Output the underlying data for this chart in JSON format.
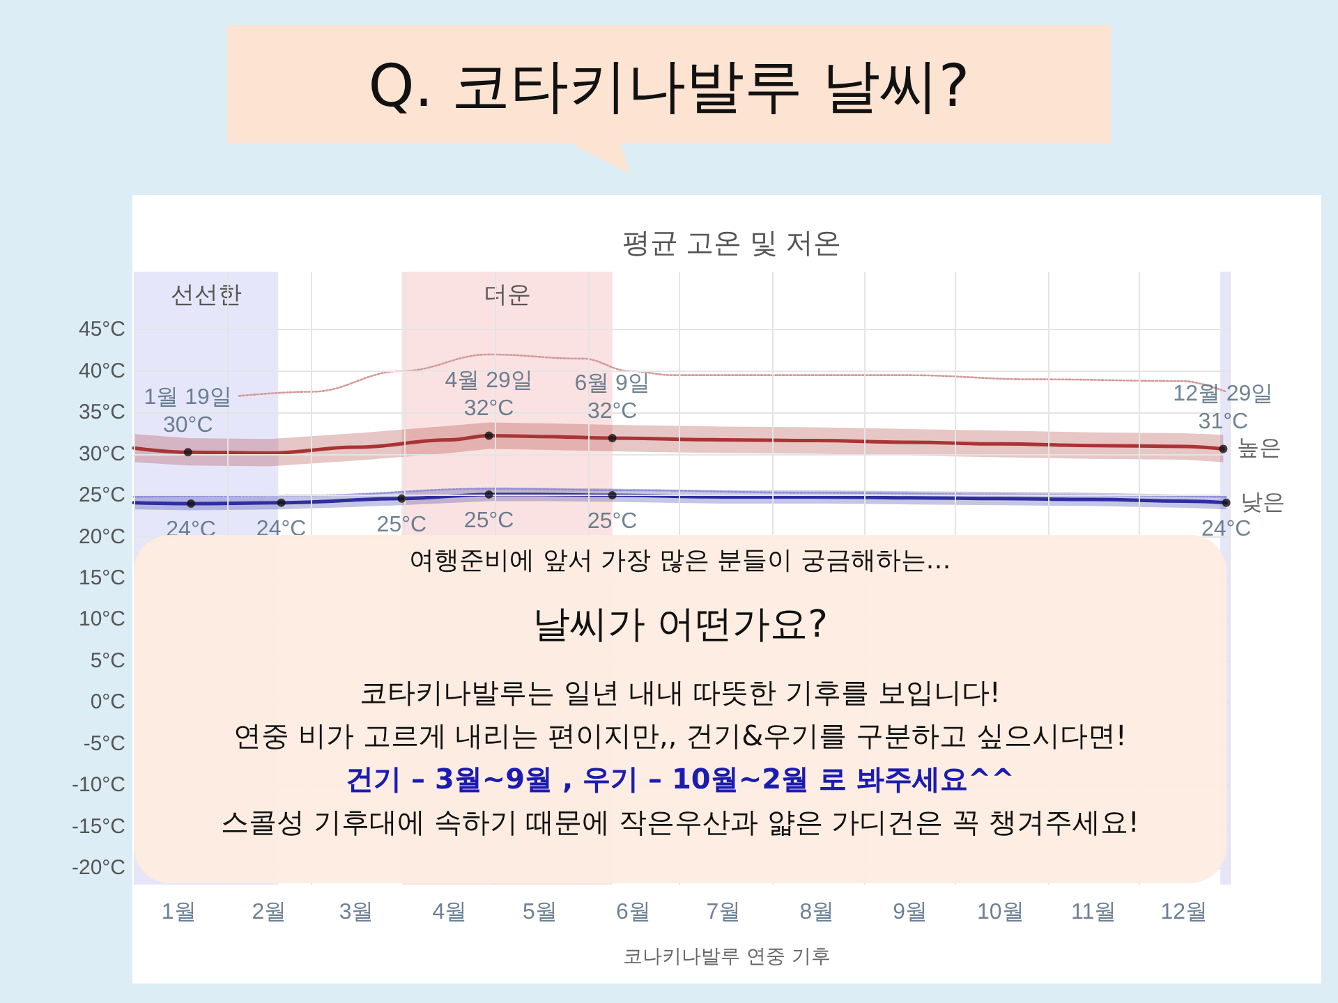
{
  "chart_data": {
    "type": "line",
    "title": "Q. 코타키나발루 날씨?",
    "subtitle": "평균 고온 및 저온",
    "xlim": [
      "--01-01",
      "--12-31"
    ],
    "xticks": [
      {
        "value": "--01-01",
        "label": null
      },
      {
        "value": "--01-16",
        "label": "1월"
      },
      {
        "value": "--02-01",
        "label": null
      },
      {
        "value": "--02-15",
        "label": "2월"
      },
      {
        "value": "--03-01",
        "label": null
      },
      {
        "value": "--03-16",
        "label": "3월"
      },
      {
        "value": "--04-01",
        "label": null
      },
      {
        "value": "--04-16",
        "label": "4월"
      },
      {
        "value": "--05-01",
        "label": null
      },
      {
        "value": "--05-16",
        "label": "5월"
      },
      {
        "value": "--06-01",
        "label": null
      },
      {
        "value": "--06-16",
        "label": "6월"
      },
      {
        "value": "--07-01",
        "label": null
      },
      {
        "value": "--07-16",
        "label": "7월"
      },
      {
        "value": "--08-01",
        "label": null
      },
      {
        "value": "--08-16",
        "label": "8월"
      },
      {
        "value": "--09-01",
        "label": null
      },
      {
        "value": "--09-16",
        "label": "9월"
      },
      {
        "value": "--10-01",
        "label": null
      },
      {
        "value": "--10-16",
        "label": "10월"
      },
      {
        "value": "--11-01",
        "label": null
      },
      {
        "value": "--11-16",
        "label": "11월"
      },
      {
        "value": "--12-01",
        "label": null
      },
      {
        "value": "--12-16",
        "label": "12월"
      },
      {
        "value": "--12-31",
        "label": null
      }
    ],
    "ylim": [
      -22,
      52
    ],
    "yticks": [
      {
        "value": -20,
        "label": "-20°C"
      },
      {
        "value": -15,
        "label": "-15°C"
      },
      {
        "value": -10,
        "label": "-10°C"
      },
      {
        "value": -5,
        "label": "-5°C"
      },
      {
        "value": 0,
        "label": "0°C"
      },
      {
        "value": 5,
        "label": "5°C"
      },
      {
        "value": 10,
        "label": "10°C"
      },
      {
        "value": 15,
        "label": "15°C"
      },
      {
        "value": 20,
        "label": "20°C"
      },
      {
        "value": 25,
        "label": "25°C"
      },
      {
        "value": 30,
        "label": "30°C"
      },
      {
        "value": 35,
        "label": "35°C"
      },
      {
        "value": 40,
        "label": "40°C"
      },
      {
        "value": 45,
        "label": "45°C"
      }
    ],
    "grid": true,
    "legend": false,
    "marker": "none",
    "line_style": "solid",
    "series": [
      {
        "name": "높은",
        "color": "#a83434",
        "x": [
          "--01-01",
          "--01-19",
          "--02-15",
          "--03-16",
          "--04-16",
          "--04-29",
          "--05-16",
          "--06-09",
          "--07-16",
          "--08-16",
          "--09-16",
          "--10-16",
          "--11-16",
          "--12-16",
          "--12-29"
        ],
        "values": [
          30.7,
          30.2,
          30.1,
          30.8,
          31.7,
          32.2,
          32.1,
          31.9,
          31.7,
          31.6,
          31.4,
          31.2,
          31.0,
          30.9,
          30.6
        ],
        "lower": [
          29.0,
          28.6,
          28.5,
          29.2,
          30.1,
          30.6,
          30.5,
          30.3,
          30.1,
          30.0,
          29.8,
          29.6,
          29.4,
          29.3,
          29.0
        ],
        "upper": [
          32.4,
          31.9,
          31.8,
          32.5,
          33.4,
          33.8,
          33.7,
          33.5,
          33.3,
          33.2,
          33.0,
          32.8,
          32.6,
          32.5,
          32.3
        ]
      },
      {
        "name": "낮은",
        "color": "#2e2e9e",
        "x": [
          "--01-01",
          "--01-20",
          "--02-19",
          "--03-31",
          "--04-29",
          "--05-16",
          "--06-09",
          "--07-16",
          "--08-16",
          "--09-16",
          "--10-16",
          "--11-16",
          "--12-16",
          "--12-30"
        ],
        "values": [
          24.1,
          24.0,
          24.1,
          24.6,
          25.1,
          25.1,
          25.0,
          24.8,
          24.8,
          24.7,
          24.6,
          24.5,
          24.3,
          24.1
        ],
        "lower": [
          23.3,
          23.2,
          23.3,
          23.8,
          24.3,
          24.3,
          24.2,
          24.0,
          24.0,
          23.9,
          23.8,
          23.7,
          23.5,
          23.3
        ],
        "upper": [
          24.9,
          24.8,
          24.9,
          25.4,
          25.9,
          25.9,
          25.8,
          25.6,
          25.6,
          25.5,
          25.4,
          25.3,
          25.1,
          24.9
        ]
      },
      {
        "type": "line",
        "line_style": "dotted",
        "color": "#d49a9a",
        "x": [
          "--02-05",
          "--03-01",
          "--03-31",
          "--04-29",
          "--05-30",
          "--06-15",
          "--06-29",
          "--08-08",
          "--09-15",
          "--10-27",
          "--12-15",
          "--12-30"
        ],
        "values": [
          37.0,
          37.5,
          40.0,
          42.0,
          41.5,
          40.0,
          39.5,
          39.5,
          39.5,
          39.0,
          38.8,
          37.5
        ]
      },
      {
        "type": "line",
        "line_style": "dotted",
        "color": "#8f8fd6",
        "x": [
          "--01-01",
          "--03-01",
          "--04-29",
          "--06-15",
          "--08-16",
          "--10-16",
          "--12-30"
        ],
        "values": [
          24.8,
          25.0,
          25.8,
          25.6,
          25.3,
          25.1,
          24.8
        ]
      }
    ],
    "bands": [
      {
        "axis": "x",
        "from": "--01-01",
        "to": "--02-18",
        "label": "선선한",
        "color": "#e6e6fb"
      },
      {
        "axis": "x",
        "from": "--03-31",
        "to": "--06-09",
        "label": "더운",
        "color": "#fbe2e2"
      },
      {
        "axis": "x",
        "from": "--12-28",
        "to": "--12-31",
        "color": "#e6e6fb"
      }
    ],
    "annotations": [
      {
        "text": "1월 19일\n30°C",
        "x": "--01-19",
        "y": 30.2
      },
      {
        "text": "4월 29일\n32°C",
        "x": "--04-29",
        "y": 32.2
      },
      {
        "text": "6월 9일\n32°C",
        "x": "--06-09",
        "y": 31.9
      },
      {
        "text": "12월 29일\n31°C",
        "x": "--12-29",
        "y": 30.6
      },
      {
        "text": "24°C",
        "x": "--01-20",
        "y": 24.0
      },
      {
        "text": "24°C",
        "x": "--02-19",
        "y": 24.1
      },
      {
        "text": "25°C",
        "x": "--03-31",
        "y": 24.6
      },
      {
        "text": "25°C",
        "x": "--04-29",
        "y": 25.1
      },
      {
        "text": "25°C",
        "x": "--06-09",
        "y": 25.0
      },
      {
        "text": "24°C",
        "x": "--12-30",
        "y": 24.1
      },
      "여행준비에 앞서 가장 많은 분들이 궁금해하는…",
      "날씨가 어떤가요?",
      "코타키나발루는 일년 내내 따뜻한 기후를 보입니다!",
      "연중 비가 고르게 내리는 편이지만,, 건기&우기를 구분하고 싶으시다면!",
      "건기 – 3월~9월 , 우기 – 10월~2월 로 봐주세요^^",
      "스콜성 기후대에 속하기 때문에 작은우산과 얇은 가디건은 꼭 챙겨주세요!",
      "코나키나발루 연중 기후"
    ]
  }
}
